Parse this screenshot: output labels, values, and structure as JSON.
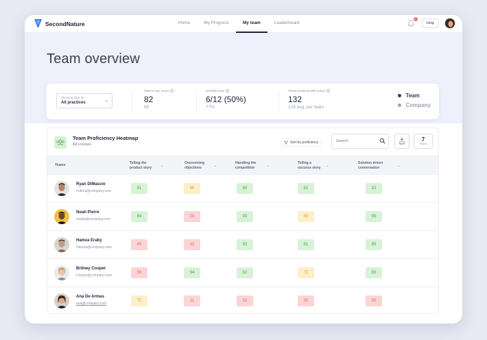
{
  "app": {
    "brand": "SecondNature",
    "brand_color": "#2b6cf0"
  },
  "nav": {
    "links": [
      "Home",
      "My Progress",
      "My team",
      "Leaderboard"
    ],
    "active": "My team",
    "notification_count": "1",
    "help_label": "Help"
  },
  "page": {
    "title": "Team overview"
  },
  "stats": {
    "filter_label": "Showing data for",
    "filter_value": "All practices",
    "avg_score_label": "Team's avg. score",
    "avg_score_value": "82",
    "avg_score_sub": "85",
    "certified_label": "Certified reps",
    "certified_value": "6/12 (50%)",
    "certified_sub": "77%",
    "times_label": "Times practiced with Jonny",
    "times_value": "132",
    "times_sub": "129 avg. per team",
    "legend": [
      {
        "label": "Team",
        "color": "#3a3f4e"
      },
      {
        "label": "Company",
        "color": "#9aa0ae"
      }
    ]
  },
  "heatmap": {
    "title": "Team Proficiency Heatmap",
    "subtitle": "All courses",
    "sort_label": "Sort by proficiency",
    "search_placeholder": "Search",
    "count": "7",
    "count_label": "Teams",
    "team_col": "Teams",
    "columns": [
      {
        "line1": "Telling the",
        "line2": "product story"
      },
      {
        "line1": "Overcoming",
        "line2": "objections"
      },
      {
        "line1": "Handling the",
        "line2": "competition"
      },
      {
        "line1": "Telling a",
        "line2": "success story"
      },
      {
        "line1": "Solution driven",
        "line2": "conversation"
      }
    ],
    "rows": [
      {
        "name": "Ryan DiMascio",
        "email": "rndima@company.com",
        "avatar_color": "#5b4a3c",
        "scores": [
          {
            "v": "91",
            "c": "green"
          },
          {
            "v": "65",
            "c": "yellow"
          },
          {
            "v": "90",
            "c": "green"
          },
          {
            "v": "82",
            "c": "green"
          },
          {
            "v": "92",
            "c": "green"
          }
        ]
      },
      {
        "name": "Noah Pierre",
        "email": "noahp@company.com",
        "avatar_color": "#e8b63a",
        "scores": [
          {
            "v": "84",
            "c": "green"
          },
          {
            "v": "28",
            "c": "red"
          },
          {
            "v": "93",
            "c": "green"
          },
          {
            "v": "65",
            "c": "yellow"
          },
          {
            "v": "99",
            "c": "green"
          }
        ]
      },
      {
        "name": "Hamza Eraby",
        "email": "Hamza@company.com",
        "avatar_color": "#8a6d5c",
        "scores": [
          {
            "v": "45",
            "c": "red"
          },
          {
            "v": "32",
            "c": "red"
          },
          {
            "v": "92",
            "c": "green"
          },
          {
            "v": "81",
            "c": "green"
          },
          {
            "v": "85",
            "c": "green"
          }
        ]
      },
      {
        "name": "Britney Cooper",
        "email": "Cooper@company.com",
        "avatar_color": "#c9c2b8",
        "scores": [
          {
            "v": "56",
            "c": "red"
          },
          {
            "v": "94",
            "c": "green"
          },
          {
            "v": "82",
            "c": "green"
          },
          {
            "v": "72",
            "c": "yellow"
          },
          {
            "v": "83",
            "c": "green"
          }
        ]
      },
      {
        "name": "Ana De Armas",
        "email": "ana@company.com",
        "avatar_color": "#6b4a3a",
        "scores": [
          {
            "v": "70",
            "c": "yellow"
          },
          {
            "v": "11",
            "c": "red"
          },
          {
            "v": "52",
            "c": "red"
          },
          {
            "v": "30",
            "c": "red"
          },
          {
            "v": "55",
            "c": "red"
          }
        ]
      }
    ]
  }
}
